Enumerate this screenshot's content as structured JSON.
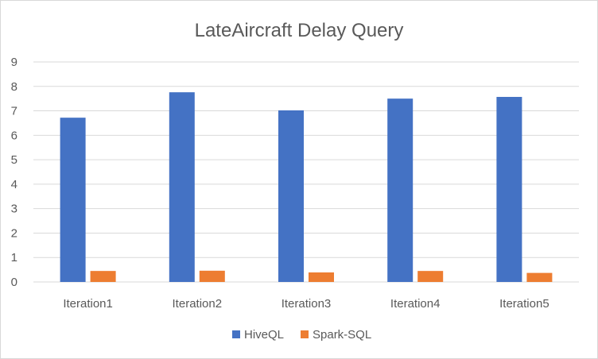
{
  "chart_data": {
    "type": "bar",
    "title": "LateAircraft Delay  Query",
    "xlabel": "",
    "ylabel": "",
    "categories": [
      "Iteration1",
      "Iteration2",
      "Iteration3",
      "Iteration4",
      "Iteration5"
    ],
    "series": [
      {
        "name": "HiveQL",
        "color": "#4472C4",
        "values": [
          6.72,
          7.76,
          7.02,
          7.5,
          7.57
        ]
      },
      {
        "name": "Spark-SQL",
        "color": "#ED7D31",
        "values": [
          0.45,
          0.46,
          0.39,
          0.45,
          0.37
        ]
      }
    ],
    "ylim": [
      0,
      9
    ],
    "yticks": [
      "0",
      "1",
      "2",
      "3",
      "4",
      "5",
      "6",
      "7",
      "8",
      "9"
    ],
    "grid": true,
    "legend": "bottom"
  }
}
